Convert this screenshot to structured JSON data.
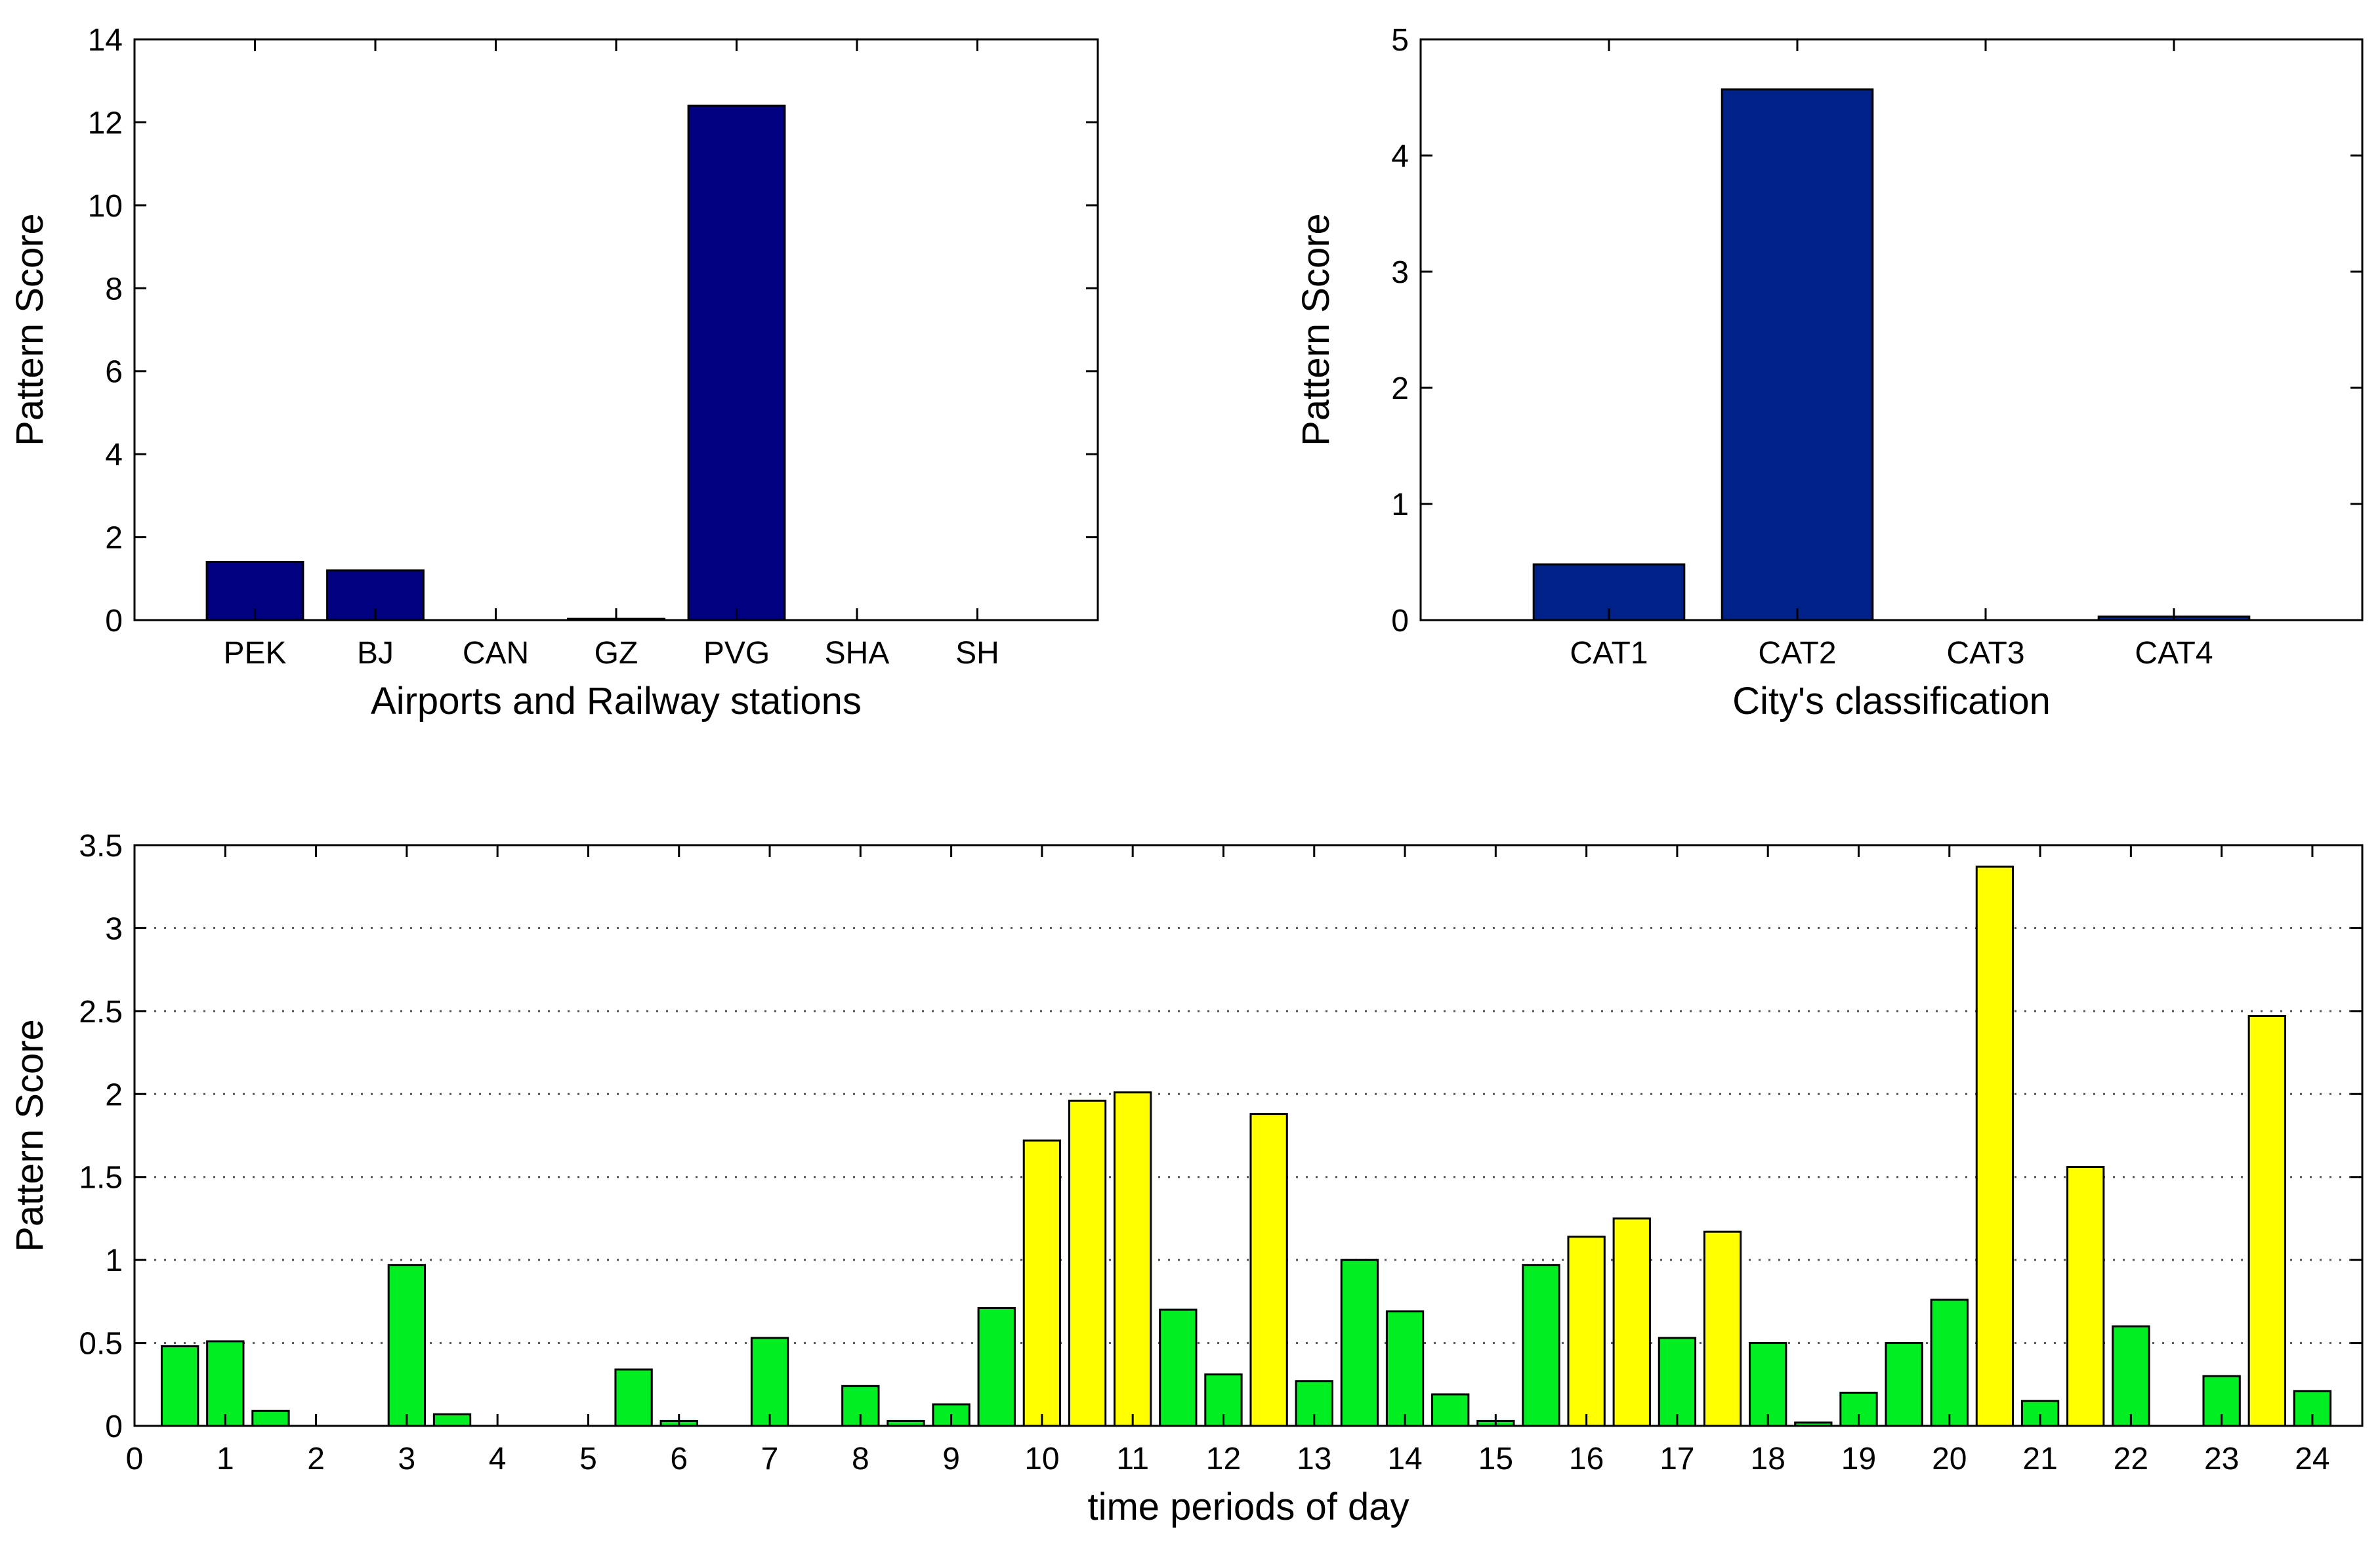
{
  "chart_data": [
    {
      "type": "bar",
      "xlabel": "Airports and Railway stations",
      "ylabel": "Pattern Score",
      "categories": [
        "PEK",
        "BJ",
        "CAN",
        "GZ",
        "PVG",
        "SHA",
        "SH"
      ],
      "values": [
        1.4,
        1.2,
        0,
        0.03,
        12.4,
        0,
        0
      ],
      "ylim": [
        0,
        14
      ],
      "yticks": [
        "0",
        "2",
        "4",
        "6",
        "8",
        "10",
        "12",
        "14"
      ],
      "color": "#000080",
      "grid": false
    },
    {
      "type": "bar",
      "xlabel": "City's classification",
      "ylabel": "Pattern Score",
      "categories": [
        "CAT1",
        "CAT2",
        "CAT3",
        "CAT4"
      ],
      "values": [
        0.48,
        4.57,
        0,
        0.03
      ],
      "ylim": [
        0,
        5
      ],
      "yticks": [
        "0",
        "1",
        "2",
        "3",
        "4",
        "5"
      ],
      "color": "#002288",
      "grid": false
    },
    {
      "type": "bar",
      "xlabel": "time periods of day",
      "ylabel": "Pattern Score",
      "x": [
        0.5,
        1,
        1.5,
        2,
        2.5,
        3,
        3.5,
        4,
        4.5,
        5,
        5.5,
        6,
        6.5,
        7,
        7.5,
        8,
        8.5,
        9,
        9.5,
        10,
        10.5,
        11,
        11.5,
        12,
        12.5,
        13,
        13.5,
        14,
        14.5,
        15,
        15.5,
        16,
        16.5,
        17,
        17.5,
        18,
        18.5,
        19,
        19.5,
        20,
        20.5,
        21,
        21.5,
        22,
        22.5,
        23,
        23.5,
        24
      ],
      "values": [
        0.48,
        0.51,
        0.09,
        0,
        0,
        0.97,
        0.07,
        0,
        0,
        0,
        0.34,
        0.03,
        0,
        0.53,
        0,
        0.24,
        0.03,
        0.13,
        0.71,
        1.72,
        1.96,
        2.01,
        0.7,
        0.31,
        1.88,
        0.27,
        1.0,
        0.69,
        0.19,
        0.03,
        0.97,
        1.14,
        1.25,
        0.53,
        1.17,
        0.5,
        0.02,
        0.2,
        0.5,
        0.76,
        3.37,
        0.15,
        1.56,
        0.6,
        0,
        0.3,
        2.47,
        0.21
      ],
      "highlight": [
        false,
        false,
        false,
        false,
        false,
        false,
        false,
        false,
        false,
        false,
        false,
        false,
        false,
        false,
        false,
        false,
        false,
        false,
        false,
        true,
        true,
        true,
        false,
        false,
        true,
        false,
        false,
        false,
        false,
        false,
        false,
        true,
        true,
        false,
        true,
        false,
        false,
        false,
        false,
        false,
        true,
        false,
        true,
        false,
        false,
        false,
        true,
        false
      ],
      "colors": {
        "normal": "#00ee22",
        "highlight": "#ffff00"
      },
      "xlim": [
        0,
        24
      ],
      "xticks": [
        "0",
        "1",
        "2",
        "3",
        "4",
        "5",
        "6",
        "7",
        "8",
        "9",
        "10",
        "11",
        "12",
        "13",
        "14",
        "15",
        "16",
        "17",
        "18",
        "19",
        "20",
        "21",
        "22",
        "23",
        "24"
      ],
      "ylim": [
        0,
        3.5
      ],
      "yticks": [
        "0",
        "0.5",
        "1",
        "1.5",
        "2",
        "2.5",
        "3",
        "3.5"
      ],
      "grid": true
    }
  ]
}
